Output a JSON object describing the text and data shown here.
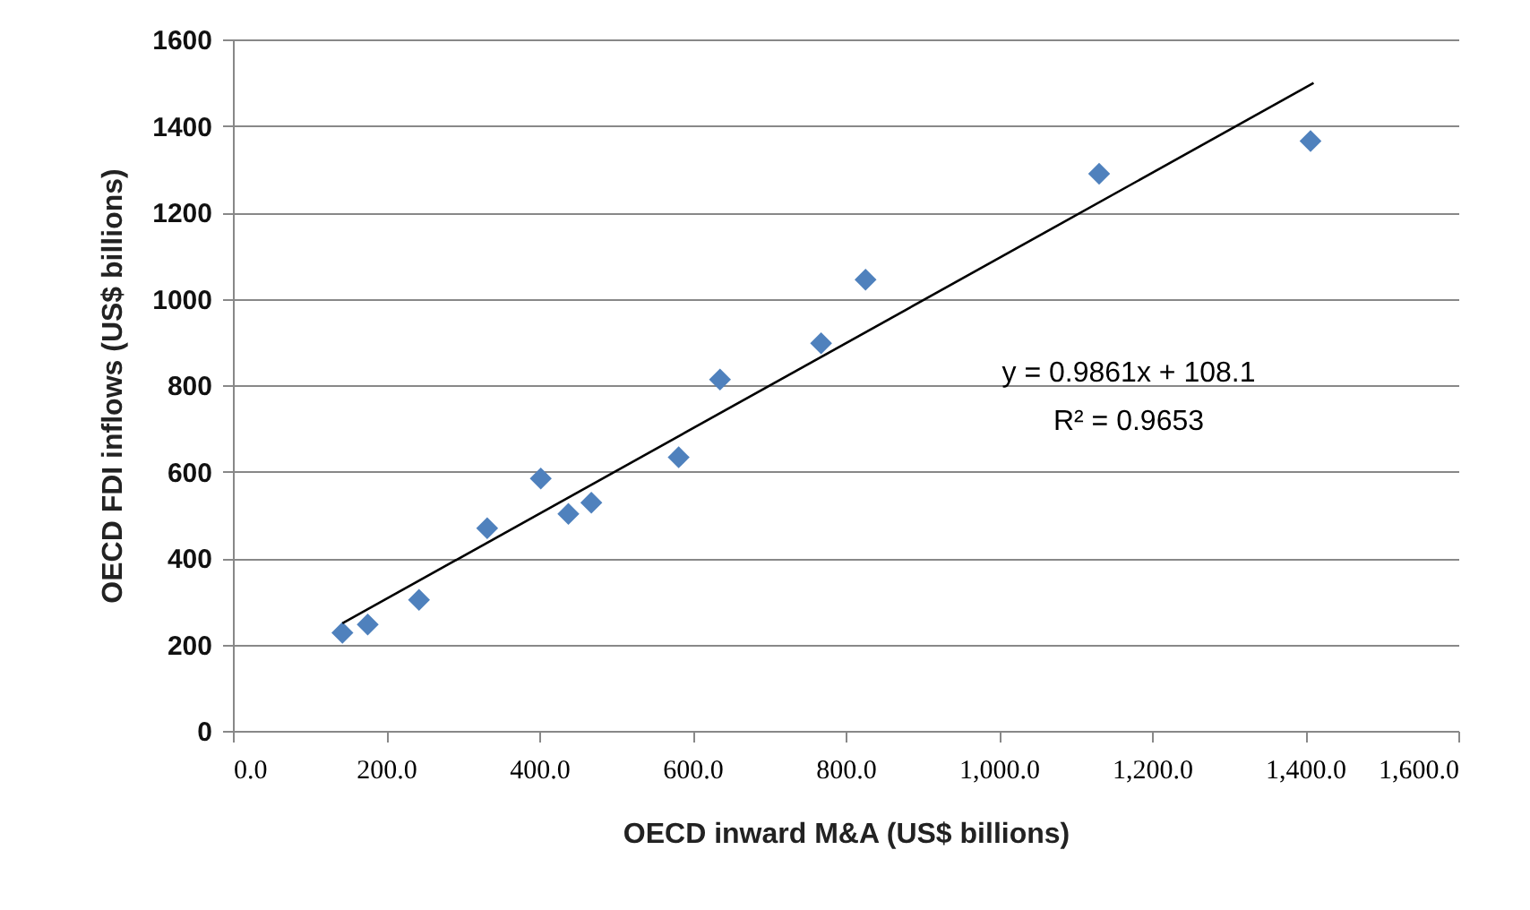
{
  "chart_data": {
    "type": "scatter",
    "xlabel": "OECD inward M&A (US$ billions)",
    "ylabel": "OECD FDI inflows (US$ billions)",
    "x": [
      143,
      176,
      243,
      332,
      402,
      438,
      468,
      582,
      636,
      768,
      826,
      1131,
      1407
    ],
    "series": [
      {
        "color": "#4f81bd",
        "marker": "diamond",
        "values": [
          227,
          246,
          303,
          469,
          584,
          502,
          528,
          633,
          813,
          897,
          1044,
          1289,
          1365
        ]
      },
      {
        "type": "line",
        "color": "#000000",
        "line_style": "solid",
        "x": [
          143,
          1411
        ],
        "values": [
          249,
          1499
        ]
      }
    ],
    "xlim": [
      0,
      1600
    ],
    "ylim": [
      0,
      1600
    ],
    "xticks": [
      {
        "value": 0,
        "label": "0.0"
      },
      {
        "value": 200,
        "label": "200.0"
      },
      {
        "value": 400,
        "label": "400.0"
      },
      {
        "value": 600,
        "label": "600.0"
      },
      {
        "value": 800,
        "label": "800.0"
      },
      {
        "value": 1000,
        "label": "1,000.0"
      },
      {
        "value": 1200,
        "label": "1,200.0"
      },
      {
        "value": 1400,
        "label": "1,400.0"
      },
      {
        "value": 1600,
        "label": "1,600.0"
      }
    ],
    "yticks": [
      0,
      200,
      400,
      600,
      800,
      1000,
      1200,
      1400,
      1600
    ],
    "grid": "y",
    "annotations": [
      "y = 0.9861x + 108.1",
      "R² = 0.9653"
    ]
  }
}
